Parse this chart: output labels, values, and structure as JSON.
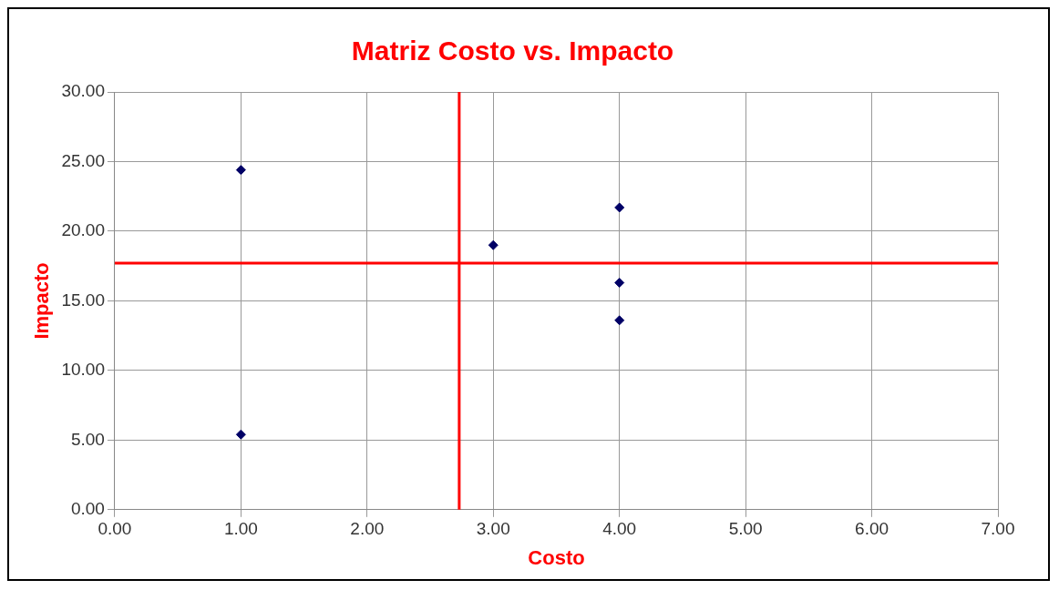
{
  "chart_data": {
    "type": "scatter",
    "title": "Matriz Costo vs. Impacto",
    "xlabel": "Costo",
    "ylabel": "Impacto",
    "x": [
      1,
      1,
      3,
      4,
      4,
      4
    ],
    "series": [
      {
        "color": "#000066",
        "values": [
          24.4,
          5.4,
          19.0,
          21.7,
          16.3,
          13.6
        ]
      }
    ],
    "xlim": [
      0,
      7
    ],
    "ylim": [
      0,
      30
    ],
    "xticks": [
      {
        "value": 0,
        "label": "0.00"
      },
      {
        "value": 1,
        "label": "1.00"
      },
      {
        "value": 2,
        "label": "2.00"
      },
      {
        "value": 3,
        "label": "3.00"
      },
      {
        "value": 4,
        "label": "4.00"
      },
      {
        "value": 5,
        "label": "5.00"
      },
      {
        "value": 6,
        "label": "6.00"
      },
      {
        "value": 7,
        "label": "7.00"
      }
    ],
    "yticks": [
      {
        "value": 0,
        "label": "0.00"
      },
      {
        "value": 5,
        "label": "5.00"
      },
      {
        "value": 10,
        "label": "10.00"
      },
      {
        "value": 15,
        "label": "15.00"
      },
      {
        "value": 20,
        "label": "20.00"
      },
      {
        "value": 25,
        "label": "25.00"
      },
      {
        "value": 30,
        "label": "30.00"
      }
    ],
    "ref_lines": [
      {
        "axis": "x",
        "value": 2.73,
        "color": "#ff0000"
      },
      {
        "axis": "y",
        "value": 17.7,
        "color": "#ff0000"
      }
    ],
    "grid": true,
    "legend": false,
    "marker": "diamond"
  }
}
